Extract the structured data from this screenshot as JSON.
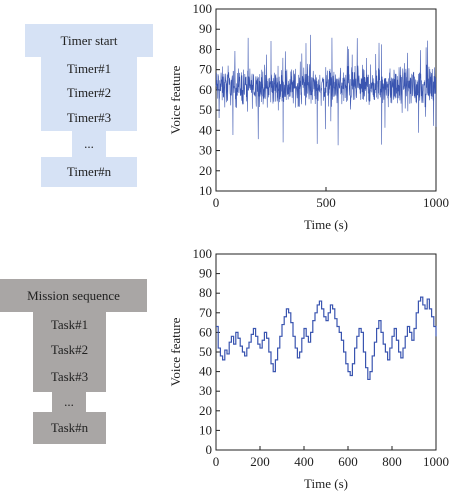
{
  "timer_diagram": {
    "items": [
      "Timer start",
      "Timer#1",
      "Timer#2",
      "Timer#3",
      "...",
      "Timer#n"
    ],
    "color": "#d6e2f5"
  },
  "mission_diagram": {
    "items": [
      "Mission sequence",
      "Task#1",
      "Task#2",
      "Task#3",
      "...",
      "Task#n"
    ],
    "color": "#a9a6a5"
  },
  "chart_data": [
    {
      "type": "line",
      "xlabel": "Time (s)",
      "ylabel": "Voice feature",
      "xlim": [
        0,
        1000
      ],
      "ylim": [
        10,
        100
      ],
      "xticks": [
        0,
        500,
        1000
      ],
      "yticks": [
        10,
        20,
        30,
        40,
        50,
        60,
        70,
        80,
        90,
        100
      ],
      "line_color": "#3a55b0",
      "series": [
        {
          "description_of_shape": "dense noise",
          "mean": 61,
          "band": [
            48,
            75
          ],
          "extreme": [
            32,
            88
          ],
          "n_points": 1000
        }
      ]
    },
    {
      "type": "line",
      "step": true,
      "xlabel": "Time (s)",
      "ylabel": "Voice feature",
      "xlim": [
        0,
        1000
      ],
      "ylim": [
        0,
        100
      ],
      "xticks": [
        0,
        200,
        400,
        600,
        800,
        1000
      ],
      "yticks": [
        0,
        10,
        20,
        30,
        40,
        50,
        60,
        70,
        80,
        90,
        100
      ],
      "line_color": "#3a55b0",
      "series": [
        {
          "x": [
            0,
            10,
            20,
            30,
            40,
            50,
            60,
            70,
            80,
            90,
            100,
            110,
            120,
            130,
            140,
            150,
            160,
            170,
            180,
            190,
            200,
            210,
            220,
            230,
            240,
            250,
            260,
            270,
            280,
            290,
            300,
            310,
            320,
            330,
            340,
            350,
            360,
            370,
            380,
            390,
            400,
            410,
            420,
            430,
            440,
            450,
            460,
            470,
            480,
            490,
            500,
            510,
            520,
            530,
            540,
            550,
            560,
            570,
            580,
            590,
            600,
            610,
            620,
            630,
            640,
            650,
            660,
            670,
            680,
            690,
            700,
            710,
            720,
            730,
            740,
            750,
            760,
            770,
            780,
            790,
            800,
            810,
            820,
            830,
            840,
            850,
            860,
            870,
            880,
            890,
            900,
            910,
            920,
            930,
            940,
            950,
            960,
            970,
            980,
            990,
            1000
          ],
          "y": [
            63,
            52,
            48,
            46,
            51,
            49,
            55,
            58,
            54,
            60,
            57,
            53,
            50,
            48,
            52,
            55,
            59,
            62,
            58,
            54,
            52,
            56,
            60,
            57,
            50,
            44,
            40,
            46,
            52,
            58,
            64,
            68,
            72,
            70,
            65,
            58,
            52,
            47,
            50,
            57,
            62,
            58,
            55,
            60,
            66,
            70,
            74,
            76,
            72,
            68,
            66,
            70,
            74,
            72,
            67,
            63,
            60,
            56,
            50,
            44,
            40,
            38,
            44,
            52,
            58,
            62,
            60,
            50,
            42,
            36,
            40,
            48,
            55,
            62,
            66,
            60,
            54,
            50,
            46,
            52,
            58,
            62,
            56,
            50,
            47,
            52,
            58,
            63,
            60,
            56,
            62,
            70,
            76,
            78,
            74,
            72,
            77,
            72,
            68,
            63,
            58
          ]
        }
      ]
    }
  ]
}
